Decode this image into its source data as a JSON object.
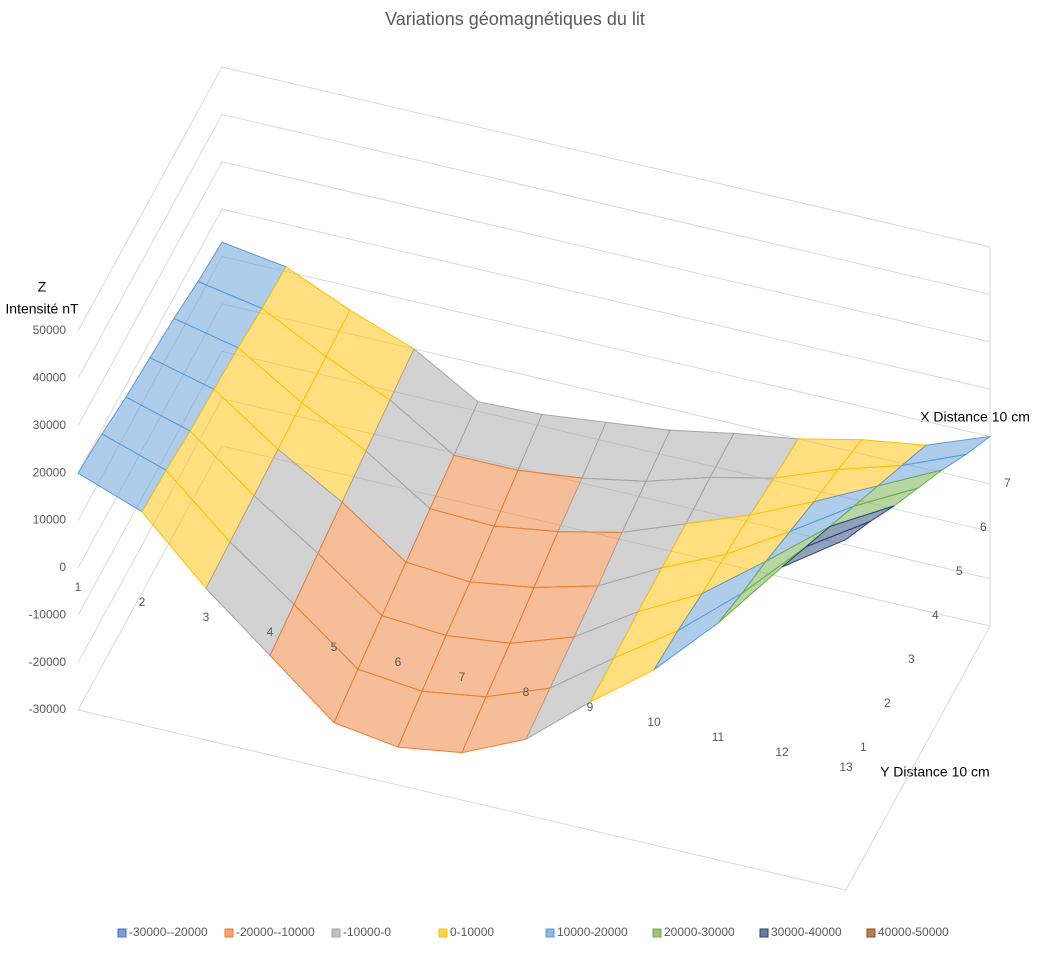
{
  "chart_data": {
    "type": "surface",
    "title": "Variations géomagnétiques du lit",
    "z_axis_label": [
      "Z",
      "Intensité nT"
    ],
    "x_axis_label": "Y Distance 10 cm",
    "depth_axis_label": "X Distance 10 cm",
    "categories": [
      "1",
      "2",
      "3",
      "4",
      "5",
      "6",
      "7",
      "8",
      "9",
      "10",
      "11",
      "12",
      "13"
    ],
    "depth_categories": [
      "1",
      "2",
      "3",
      "4",
      "5",
      "6",
      "7"
    ],
    "zlim": [
      -30000,
      50000
    ],
    "zticks": [
      -30000,
      -20000,
      -10000,
      0,
      10000,
      20000,
      30000,
      40000,
      50000
    ],
    "series": [
      {
        "values": [
          20000,
          15000,
          2000,
          -9000,
          -20000,
          -22000,
          -20000,
          -14000,
          -3000,
          7000,
          20000,
          35000,
          44000
        ]
      },
      {
        "values": [
          19000,
          14500,
          2500,
          -7500,
          -18000,
          -19500,
          -17500,
          -12500,
          -3000,
          6000,
          17000,
          30000,
          38500
        ]
      },
      {
        "values": [
          17500,
          13500,
          3000,
          -6000,
          -16000,
          -17000,
          -15500,
          -11000,
          -2500,
          4500,
          14500,
          25000,
          32500
        ]
      },
      {
        "values": [
          16500,
          13000,
          3500,
          -4500,
          -14000,
          -15000,
          -13000,
          -9500,
          -2500,
          3500,
          11500,
          20000,
          27000
        ]
      },
      {
        "values": [
          15500,
          12500,
          4000,
          -3000,
          -12000,
          -12500,
          -10500,
          -7500,
          -2500,
          2500,
          8500,
          15000,
          21500
        ]
      },
      {
        "values": [
          14000,
          11500,
          4500,
          -1500,
          -10000,
          -10000,
          -8500,
          -6000,
          -2000,
          1000,
          6000,
          10000,
          15500
        ]
      },
      {
        "values": [
          13000,
          11000,
          5000,
          0,
          -8000,
          -7500,
          -6000,
          -4500,
          -2000,
          0,
          3000,
          5000,
          10000
        ]
      }
    ],
    "bands": [
      {
        "label": "-30000--20000",
        "min": -30000,
        "max": -20000,
        "color": "#4472c4"
      },
      {
        "label": "-20000--10000",
        "min": -20000,
        "max": -10000,
        "color": "#ed7d31"
      },
      {
        "label": "-10000-0",
        "min": -10000,
        "max": 0,
        "color": "#a5a5a5"
      },
      {
        "label": "0-10000",
        "min": 0,
        "max": 10000,
        "color": "#ffc000"
      },
      {
        "label": "10000-20000",
        "min": 10000,
        "max": 20000,
        "color": "#5b9bd5"
      },
      {
        "label": "20000-30000",
        "min": 20000,
        "max": 30000,
        "color": "#70ad47"
      },
      {
        "label": "30000-40000",
        "min": 30000,
        "max": 40000,
        "color": "#264478"
      },
      {
        "label": "40000-50000",
        "min": 40000,
        "max": 50000,
        "color": "#9e480e"
      }
    ],
    "grid": true
  }
}
